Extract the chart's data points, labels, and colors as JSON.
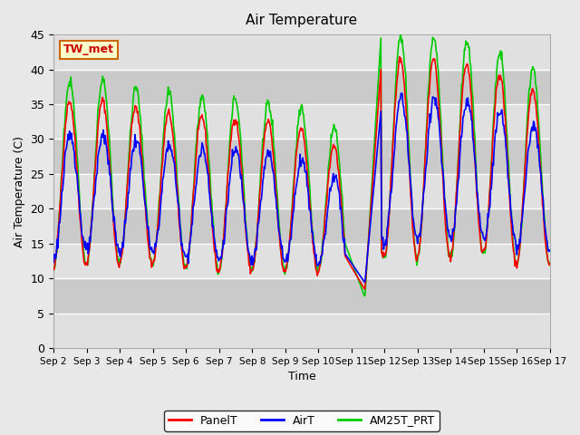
{
  "title": "Air Temperature",
  "ylabel": "Air Temperature (C)",
  "xlabel": "Time",
  "ylim": [
    0,
    45
  ],
  "yticks": [
    0,
    5,
    10,
    15,
    20,
    25,
    30,
    35,
    40,
    45
  ],
  "x_tick_labels": [
    "Sep 2",
    "Sep 3",
    "Sep 4",
    "Sep 5",
    "Sep 6",
    "Sep 7",
    "Sep 8",
    "Sep 9",
    "Sep 10",
    "Sep 11",
    "Sep 12",
    "Sep 13",
    "Sep 14",
    "Sep 15",
    "Sep 16",
    "Sep 17"
  ],
  "panelT_color": "#FF0000",
  "airT_color": "#0000FF",
  "am25T_color": "#00CC00",
  "bg_color": "#E8E8E8",
  "plot_bg_color": "#F0F0F0",
  "legend_label_panelT": "PanelT",
  "legend_label_airT": "AirT",
  "legend_label_am25T": "AM25T_PRT",
  "site_label": "TW_met",
  "line_width": 1.2,
  "n_days": 15,
  "n_points_per_day": 48
}
